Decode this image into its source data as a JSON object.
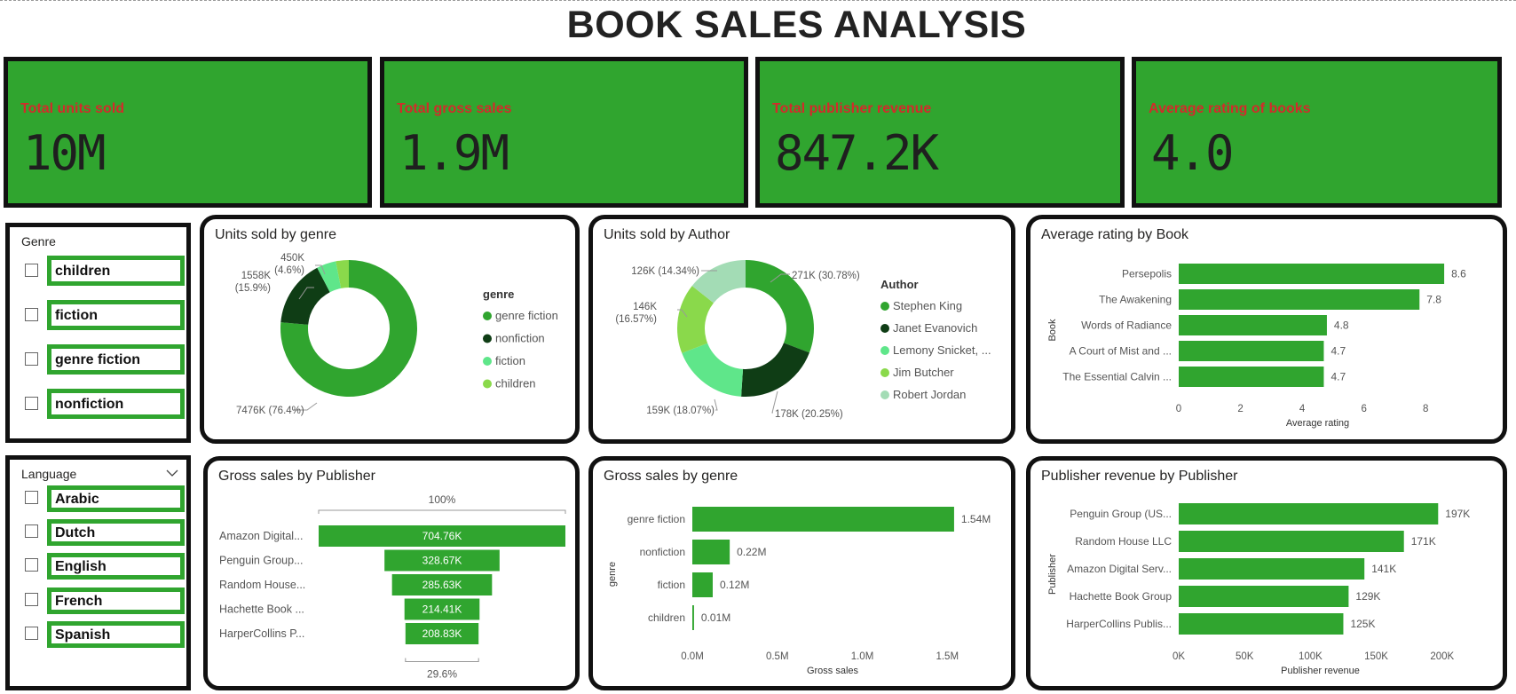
{
  "title": "BOOK SALES ANALYSIS",
  "colors": {
    "primary_green": "#30a52f",
    "label_red": "#d22b2b",
    "dark_green": "#0f3d15",
    "light_green": "#5fe68a",
    "lime_green": "#8ad94b",
    "pale_green": "#a3dcb5"
  },
  "kpis": [
    {
      "label": "Total units sold",
      "value": "10M"
    },
    {
      "label": "Total gross sales",
      "value": "1.9M"
    },
    {
      "label": "Total publisher revenue",
      "value": "847.2K"
    },
    {
      "label": "Average rating of books",
      "value": "4.0"
    }
  ],
  "slicers": {
    "genre": {
      "header": "Genre",
      "items": [
        "children",
        "fiction",
        "genre fiction",
        "nonfiction"
      ]
    },
    "language": {
      "header": "Language",
      "dropdown_icon": "chevron-down-icon",
      "items": [
        "Arabic",
        "Dutch",
        "English",
        "French",
        "Spanish"
      ]
    }
  },
  "panels": {
    "units_by_genre": {
      "title": "Units sold by genre",
      "legend_title": "genre"
    },
    "units_by_author": {
      "title": "Units sold by Author",
      "legend_title": "Author"
    },
    "rating_by_book": {
      "title": "Average rating by Book"
    },
    "gross_by_publisher": {
      "title": "Gross sales by Publisher"
    },
    "gross_by_genre": {
      "title": "Gross sales by genre"
    },
    "revenue_by_publisher": {
      "title": "Publisher revenue by Publisher"
    }
  },
  "chart_data": [
    {
      "id": "units_by_genre",
      "type": "pie",
      "title": "Units sold by genre",
      "legend_title": "genre",
      "categories": [
        "genre fiction",
        "nonfiction",
        "fiction",
        "children"
      ],
      "values": [
        7476,
        1558,
        450,
        300
      ],
      "colors": [
        "#30a52f",
        "#0f3d15",
        "#5fe68a",
        "#8ad94b"
      ],
      "data_labels": [
        "7476K (76.4%)",
        "1558K (15.9%)",
        "450K (4.6%)",
        ""
      ]
    },
    {
      "id": "units_by_author",
      "type": "pie",
      "title": "Units sold by Author",
      "legend_title": "Author",
      "categories": [
        "Stephen King",
        "Janet Evanovich",
        "Lemony Snicket, ...",
        "Jim Butcher",
        "Robert Jordan"
      ],
      "values": [
        271,
        178,
        159,
        146,
        126
      ],
      "colors": [
        "#30a52f",
        "#0f3d15",
        "#5fe68a",
        "#8ad94b",
        "#a3dcb5"
      ],
      "data_labels": [
        "271K (30.78%)",
        "178K (20.25%)",
        "159K (18.07%)",
        "146K (16.57%)",
        "126K (14.34%)"
      ]
    },
    {
      "id": "rating_by_book",
      "type": "bar",
      "title": "Average rating by Book",
      "categories": [
        "Persepolis",
        "The Awakening",
        "Words of Radiance",
        "A Court of Mist and ...",
        "The Essential Calvin ..."
      ],
      "values": [
        8.6,
        7.8,
        4.8,
        4.7,
        4.7
      ],
      "data_labels": [
        "8.6",
        "7.8",
        "4.8",
        "4.7",
        "4.7"
      ],
      "xlabel": "Average rating",
      "ylabel": "Book",
      "xlim": [
        0,
        9
      ],
      "xticks": [
        "0",
        "2",
        "4",
        "6",
        "8"
      ],
      "xtick_values": [
        0,
        2,
        4,
        6,
        8
      ]
    },
    {
      "id": "gross_by_publisher",
      "type": "bar",
      "subtype": "funnel",
      "title": "Gross sales by Publisher",
      "categories": [
        "Amazon Digital...",
        "Penguin Group...",
        "Random House...",
        "Hachette Book ...",
        "HarperCollins P..."
      ],
      "values": [
        704.76,
        328.67,
        285.63,
        214.41,
        208.83
      ],
      "data_labels": [
        "704.76K",
        "328.67K",
        "285.63K",
        "214.41K",
        "208.83K"
      ],
      "top_label": "100%",
      "bottom_label": "29.6%"
    },
    {
      "id": "gross_by_genre",
      "type": "bar",
      "title": "Gross sales by genre",
      "categories": [
        "genre fiction",
        "nonfiction",
        "fiction",
        "children"
      ],
      "values": [
        1.54,
        0.22,
        0.12,
        0.01
      ],
      "data_labels": [
        "1.54M",
        "0.22M",
        "0.12M",
        "0.01M"
      ],
      "xlabel": "Gross sales",
      "ylabel": "genre",
      "xlim": [
        0,
        1.65
      ],
      "xticks": [
        "0.0M",
        "0.5M",
        "1.0M",
        "1.5M"
      ],
      "xtick_values": [
        0,
        0.5,
        1.0,
        1.5
      ]
    },
    {
      "id": "revenue_by_publisher",
      "type": "bar",
      "title": "Publisher revenue by Publisher",
      "categories": [
        "Penguin Group (US...",
        "Random House LLC",
        "Amazon Digital Serv...",
        "Hachette Book Group",
        "HarperCollins Publis..."
      ],
      "values": [
        197,
        171,
        141,
        129,
        125
      ],
      "data_labels": [
        "197K",
        "171K",
        "141K",
        "129K",
        "125K"
      ],
      "xlabel": "Publisher revenue",
      "ylabel": "Publisher",
      "xlim": [
        0,
        215
      ],
      "xticks": [
        "0K",
        "50K",
        "100K",
        "150K",
        "200K"
      ],
      "xtick_values": [
        0,
        50,
        100,
        150,
        200
      ]
    }
  ]
}
